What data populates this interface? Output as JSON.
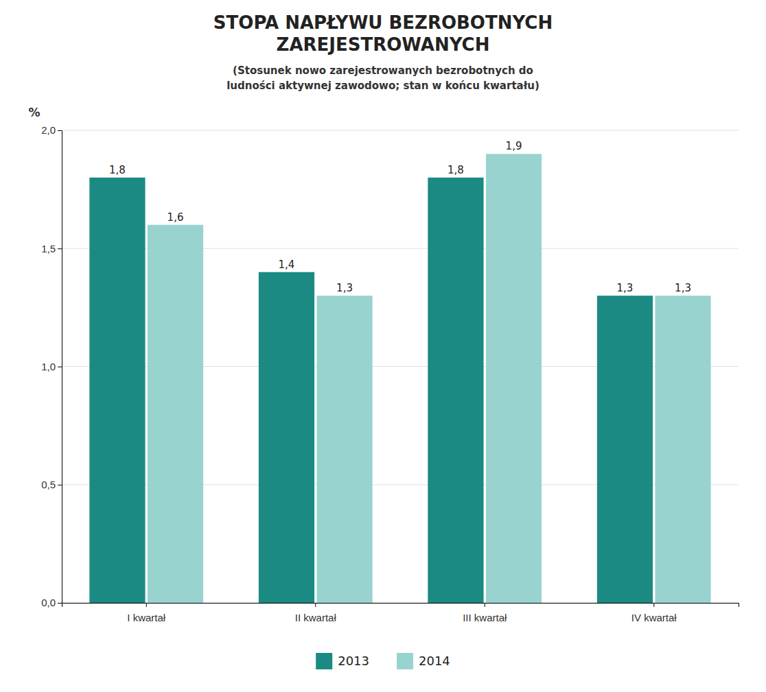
{
  "chart_data": {
    "type": "bar",
    "title": [
      "STOPA NAPŁYWU BEZROBOTNYCH",
      "ZAREJESTROWANYCH"
    ],
    "subtitle": [
      "(Stosunek nowo zarejestrowanych bezrobotnych do",
      "ludności aktywnej zawodowo; stan w końcu kwartału)"
    ],
    "y_label": "%",
    "categories": [
      "I kwartał",
      "II kwartał",
      "III kwartał",
      "IV kwartał"
    ],
    "series": [
      {
        "name": "2013",
        "color": "#1a8a82",
        "values": [
          1.8,
          1.4,
          1.8,
          1.3
        ],
        "value_labels": [
          "1,8",
          "1,4",
          "1,8",
          "1,3"
        ]
      },
      {
        "name": "2014",
        "color": "#99d3d0",
        "values": [
          1.6,
          1.3,
          1.9,
          1.3
        ],
        "value_labels": [
          "1,6",
          "1,3",
          "1,9",
          "1,3"
        ]
      }
    ],
    "ylim": [
      0.0,
      2.0
    ],
    "yticks": [
      {
        "value": 0.0,
        "label": "0,0"
      },
      {
        "value": 0.5,
        "label": "0,5"
      },
      {
        "value": 1.0,
        "label": "1,0"
      },
      {
        "value": 1.5,
        "label": "1,5"
      },
      {
        "value": 2.0,
        "label": "2,0"
      }
    ],
    "grid": true,
    "legend": "bottom",
    "data_labels": true
  }
}
